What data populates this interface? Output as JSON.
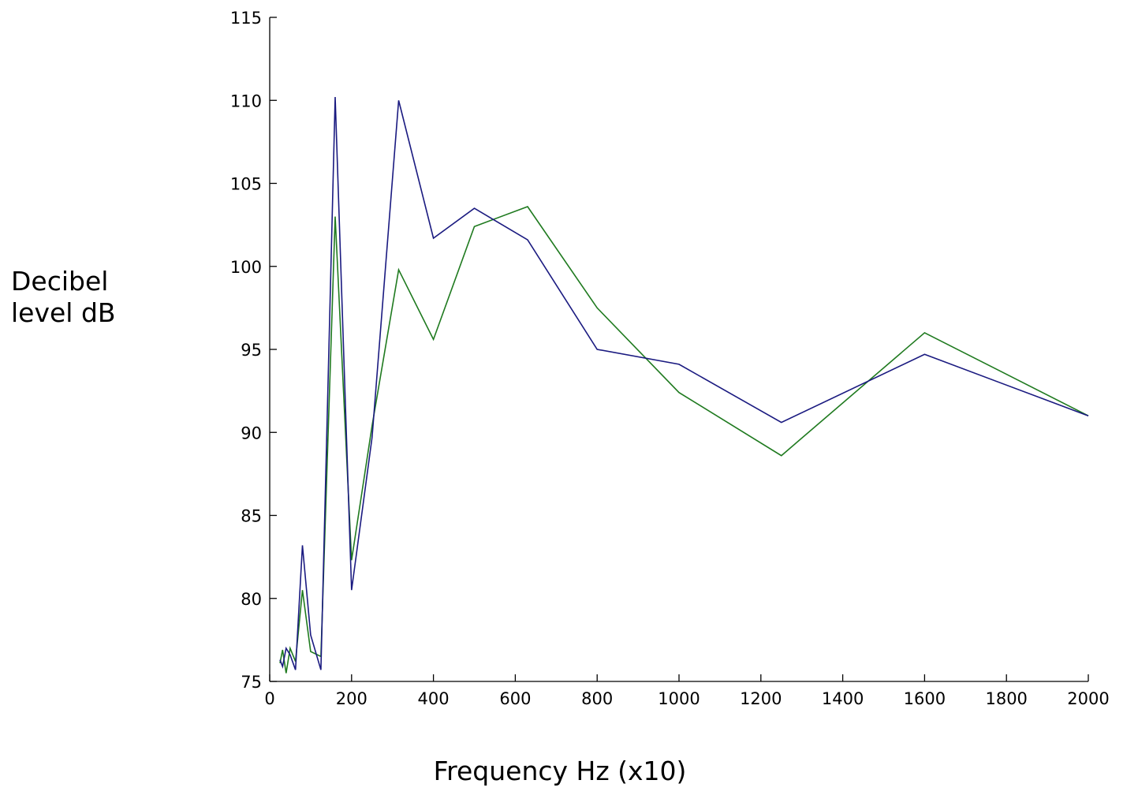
{
  "chart_data": {
    "type": "line",
    "title": "",
    "xlabel": "Frequency Hz (x10)",
    "ylabel_lines": [
      "Decibel",
      "level dB"
    ],
    "xlim": [
      0,
      2000
    ],
    "ylim": [
      75,
      115
    ],
    "xticks": [
      0,
      200,
      400,
      600,
      800,
      1000,
      1200,
      1400,
      1600,
      1800,
      2000
    ],
    "yticks": [
      75,
      80,
      85,
      90,
      95,
      100,
      105,
      110,
      115
    ],
    "grid": false,
    "legend": "none",
    "series": [
      {
        "color": "#1a1a80",
        "x": [
          25,
          31.5,
          40,
          50,
          63,
          80,
          100,
          125,
          160,
          200,
          250,
          315,
          400,
          500,
          630,
          800,
          1000,
          1250,
          1600,
          2000
        ],
        "y": [
          76.3,
          75.9,
          77.0,
          76.6,
          75.7,
          83.2,
          77.8,
          75.7,
          110.2,
          80.5,
          89.7,
          110.0,
          101.7,
          103.5,
          101.6,
          95.0,
          94.1,
          90.6,
          94.7,
          91.0
        ]
      },
      {
        "color": "#1f7a1f",
        "x": [
          25,
          31.5,
          40,
          50,
          63,
          80,
          100,
          125,
          160,
          200,
          250,
          315,
          400,
          500,
          630,
          800,
          1000,
          1250,
          1600,
          2000
        ],
        "y": [
          76.1,
          76.9,
          75.5,
          77.0,
          76.2,
          80.5,
          76.8,
          76.5,
          103.0,
          82.3,
          90.4,
          99.8,
          95.6,
          102.4,
          103.6,
          97.5,
          92.4,
          88.6,
          96.0,
          91.0
        ]
      }
    ]
  }
}
